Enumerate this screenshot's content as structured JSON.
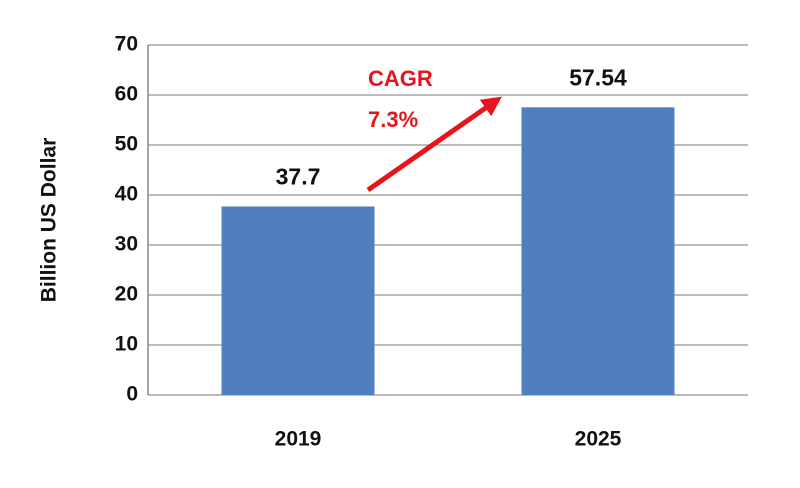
{
  "chart_data": {
    "type": "bar",
    "y_label": "Billion US Dollar",
    "categories": [
      "2019",
      "2025"
    ],
    "values": [
      37.7,
      57.54
    ],
    "color": "#4f7fbf",
    "ylim": [
      0,
      70
    ],
    "yticks": [
      0,
      10,
      20,
      30,
      40,
      50,
      60,
      70
    ],
    "grid": true,
    "annotations": [
      "CAGR",
      "7.3%"
    ]
  }
}
